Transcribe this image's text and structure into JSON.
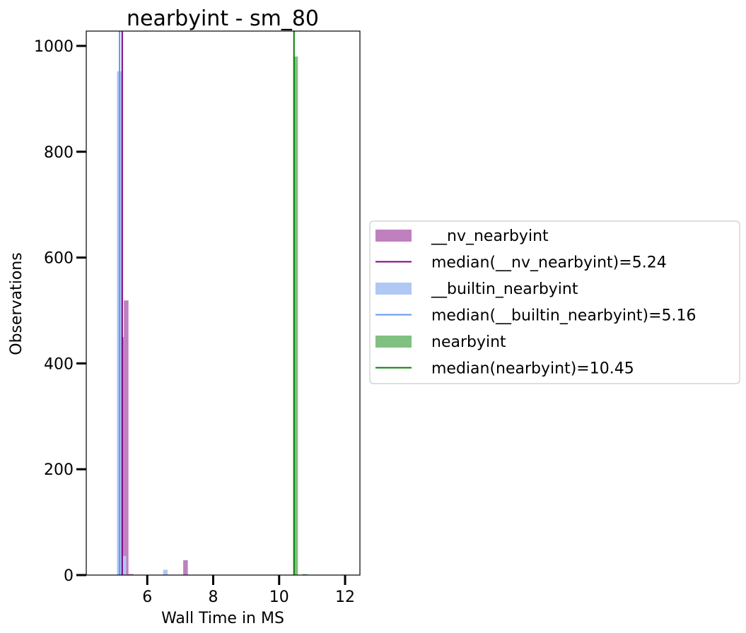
{
  "chart_data": {
    "type": "histogram",
    "title": "nearbyint - sm_80",
    "xlabel": "Wall Time in MS",
    "ylabel": "Observations",
    "xlim": [
      4.15,
      12.45
    ],
    "ylim": [
      0,
      1028
    ],
    "xticks": [
      6,
      8,
      10,
      12
    ],
    "yticks": [
      0,
      200,
      400,
      600,
      800,
      1000
    ],
    "grid": false,
    "legend_position": "center-right",
    "series": [
      {
        "name": "__nv_nearbyint",
        "color": "#bf80bf",
        "bins": [
          {
            "x0": 5.15,
            "x1": 5.29,
            "count": 450
          },
          {
            "x0": 5.29,
            "x1": 5.43,
            "count": 519
          },
          {
            "x0": 5.43,
            "x1": 5.57,
            "count": 2
          },
          {
            "x0": 7.09,
            "x1": 7.23,
            "count": 28
          }
        ],
        "median_label": "median(__nv_nearbyint)=5.24",
        "median": 5.24,
        "median_color": "#800080"
      },
      {
        "name": "__builtin_nearbyint",
        "color": "#b0c8f4",
        "bins": [
          {
            "x0": 5.08,
            "x1": 5.22,
            "count": 952
          },
          {
            "x0": 5.22,
            "x1": 5.36,
            "count": 36
          },
          {
            "x0": 6.48,
            "x1": 6.62,
            "count": 10
          }
        ],
        "median_label": "median(__builtin_nearbyint)=5.16",
        "median": 5.16,
        "median_color": "#6495ed"
      },
      {
        "name": "nearbyint",
        "color": "#80c080",
        "bins": [
          {
            "x0": 10.43,
            "x1": 10.57,
            "count": 980
          },
          {
            "x0": 10.71,
            "x1": 10.85,
            "count": 2
          }
        ],
        "median_label": "median(nearbyint)=10.45",
        "median": 10.45,
        "median_color": "#008000"
      }
    ]
  }
}
